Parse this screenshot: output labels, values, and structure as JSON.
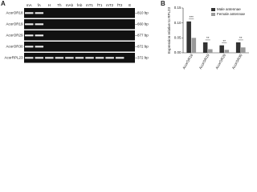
{
  "gel": {
    "panel_label": "A",
    "lanes": [
      "mA",
      "fA",
      "H",
      "Th",
      "mAb",
      "fAb",
      "mT1",
      "fT1",
      "mT2",
      "fT2",
      "E"
    ],
    "rows": [
      {
        "name": "AcorOR18",
        "size": "810 bp"
      },
      {
        "name": "AcorOR19",
        "size": "660 bp"
      },
      {
        "name": "AcorOR29",
        "size": "877 bp"
      },
      {
        "name": "AcorOR30",
        "size": "872 bp"
      },
      {
        "name": "AcorRPL23",
        "size": "372 bp"
      }
    ]
  },
  "chart_data": {
    "type": "bar",
    "panel_label": "B",
    "ylabel": "Expression relative to RPL23",
    "categories": [
      "AcorOR18",
      "AcorOR19",
      "AcorOR29",
      "AcorOR30"
    ],
    "series": [
      {
        "name": "Male antennae",
        "color": "#333333",
        "values": [
          0.105,
          0.035,
          0.025,
          0.035
        ]
      },
      {
        "name": "Female antennae",
        "color": "#9a9a9a",
        "values": [
          0.05,
          0.012,
          0.01,
          0.018
        ]
      }
    ],
    "annotations": [
      "***",
      "**",
      "**",
      "**"
    ],
    "ylim": [
      0,
      0.15
    ],
    "yticks": [
      {
        "value": 0,
        "label": "0.00"
      },
      {
        "value": 0.05,
        "label": "0.05"
      },
      {
        "value": 0.1,
        "label": "0.10"
      },
      {
        "value": 0.15,
        "label": "0.15"
      }
    ],
    "legend": "upper right"
  }
}
